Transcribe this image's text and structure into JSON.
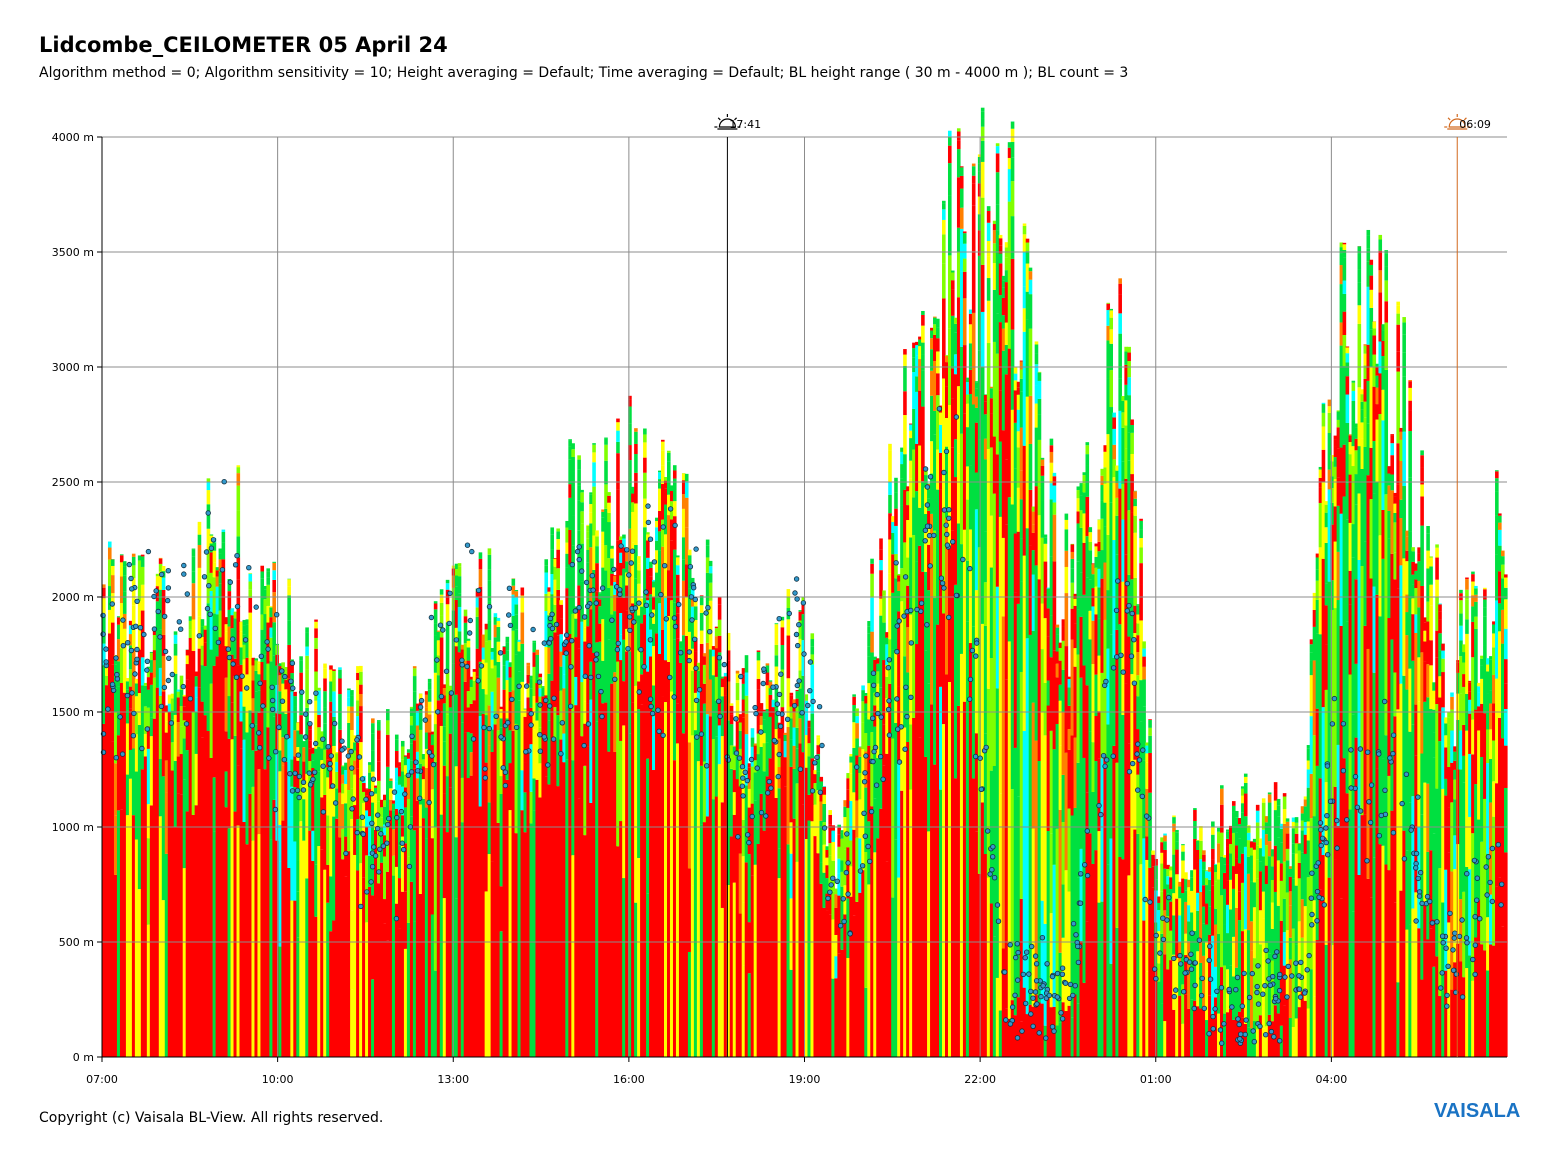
{
  "header": {
    "title": "Lidcombe_CEILOMETER 05 April 24",
    "subtitle": "Algorithm method = 0; Algorithm sensitivity = 10; Height averaging = Default; Time averaging = Default; BL height range ( 30 m - 4000 m ); BL count = 3"
  },
  "footer": {
    "copyright": "Copyright (c) Vaisala BL-View. All rights reserved.",
    "brand": "VAISALA",
    "brand_color": "#1a73c4"
  },
  "chart_data": {
    "type": "heatmap",
    "title": "Lidcombe_CEILOMETER 05 April 24",
    "x_ticks": [
      "07:00",
      "10:00",
      "13:00",
      "16:00",
      "19:00",
      "22:00",
      "01:00",
      "04:00"
    ],
    "x_range_hours": [
      7,
      31
    ],
    "y_ticks": [
      "0 m",
      "500 m",
      "1000 m",
      "1500 m",
      "2000 m",
      "2500 m",
      "3000 m",
      "3500 m",
      "4000 m"
    ],
    "y_range_m": [
      0,
      4000
    ],
    "grid": true,
    "markers": [
      {
        "label": "17:41",
        "hour": 17.683,
        "kind": "sunset",
        "color": "#000000"
      },
      {
        "label": "06:09",
        "hour": 30.15,
        "kind": "sunrise",
        "color": "#d2691e"
      }
    ],
    "colors": {
      "low": "#00e040",
      "mid_low": "#80ff00",
      "mid": "#ffff00",
      "mid_high": "#ff8000",
      "high": "#ff0000",
      "clear": "#00ffff",
      "bl_point": "#3399cc"
    },
    "profile": [
      {
        "h": 7.0,
        "c": 1700,
        "t": 2100
      },
      {
        "h": 8.5,
        "c": 1800,
        "t": 2000
      },
      {
        "h": 9.0,
        "c": 2000,
        "t": 2600
      },
      {
        "h": 10.5,
        "c": 1300,
        "t": 1800
      },
      {
        "h": 12.0,
        "c": 900,
        "t": 1400
      },
      {
        "h": 13.0,
        "c": 1800,
        "t": 2100
      },
      {
        "h": 14.5,
        "c": 1500,
        "t": 1900
      },
      {
        "h": 15.0,
        "c": 1900,
        "t": 2500
      },
      {
        "h": 16.0,
        "c": 2000,
        "t": 2700
      },
      {
        "h": 17.0,
        "c": 1900,
        "t": 2300
      },
      {
        "h": 18.0,
        "c": 1200,
        "t": 1600
      },
      {
        "h": 19.0,
        "c": 1800,
        "t": 2000
      },
      {
        "h": 19.5,
        "c": 600,
        "t": 900
      },
      {
        "h": 20.5,
        "c": 1600,
        "t": 2600
      },
      {
        "h": 21.5,
        "c": 2500,
        "t": 3700
      },
      {
        "h": 22.5,
        "c": 300,
        "t": 3800
      },
      {
        "h": 23.5,
        "c": 300,
        "t": 2100
      },
      {
        "h": 24.5,
        "c": 1900,
        "t": 3500
      },
      {
        "h": 25.0,
        "c": 500,
        "t": 900
      },
      {
        "h": 26.5,
        "c": 200,
        "t": 1200
      },
      {
        "h": 27.5,
        "c": 300,
        "t": 1000
      },
      {
        "h": 28.0,
        "c": 1200,
        "t": 3300
      },
      {
        "h": 29.0,
        "c": 1200,
        "t": 3400
      },
      {
        "h": 30.0,
        "c": 400,
        "t": 1700
      },
      {
        "h": 31.0,
        "c": 900,
        "t": 2500
      }
    ]
  }
}
